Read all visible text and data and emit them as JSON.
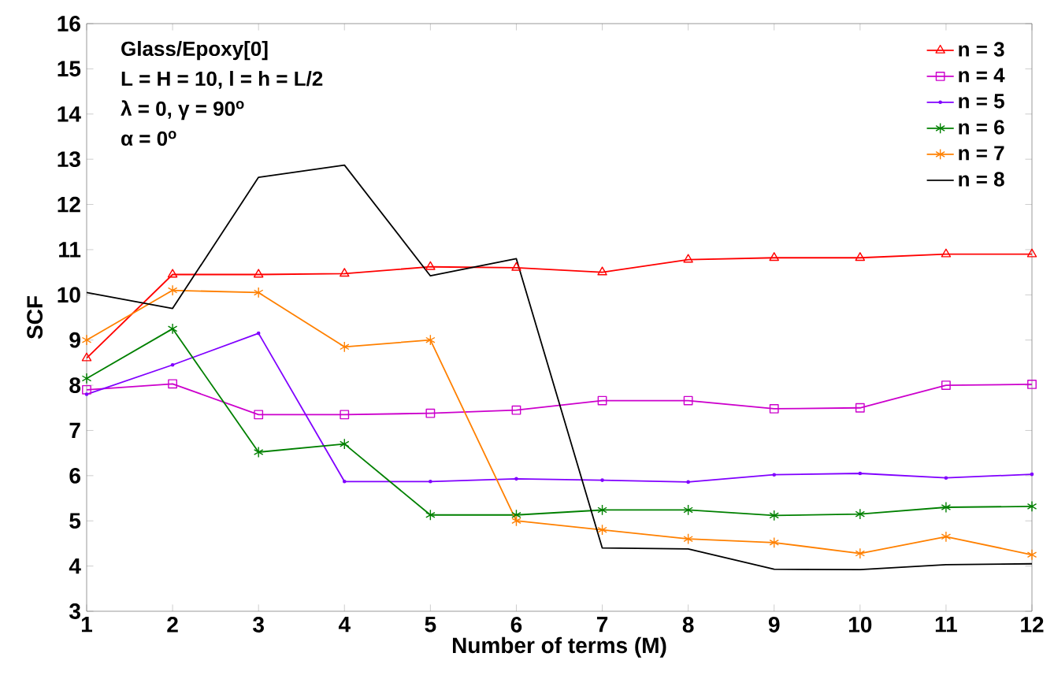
{
  "chart_data": {
    "type": "line",
    "xlabel": "Number of terms (M)",
    "ylabel": "SCF",
    "x": [
      1,
      2,
      3,
      4,
      5,
      6,
      7,
      8,
      9,
      10,
      11,
      12
    ],
    "xlim": [
      1,
      12
    ],
    "xticks": [
      1,
      2,
      3,
      4,
      5,
      6,
      7,
      8,
      9,
      10,
      11,
      12
    ],
    "ylim": [
      3,
      16
    ],
    "yticks": [
      3,
      4,
      5,
      6,
      7,
      8,
      9,
      10,
      11,
      12,
      13,
      14,
      15,
      16
    ],
    "grid": false,
    "legend": "top right",
    "annotations": [
      "Glass/Epoxy[0]",
      "L = H = 10, l = h = L/2",
      "λ = 0, γ = 90$^{o}$",
      "α = 0$^{o}$"
    ],
    "series": [
      {
        "name": "n = 3",
        "color": "#ff0000",
        "marker": "triangle",
        "values": [
          8.6,
          10.45,
          10.45,
          10.47,
          10.62,
          10.6,
          10.5,
          10.78,
          10.82,
          10.82,
          10.9,
          10.9
        ]
      },
      {
        "name": "n = 4",
        "color": "#cc00cc",
        "marker": "square",
        "values": [
          7.9,
          8.03,
          7.35,
          7.35,
          7.38,
          7.45,
          7.66,
          7.66,
          7.48,
          7.5,
          8.0,
          8.02
        ]
      },
      {
        "name": "n = 5",
        "color": "#8000ff",
        "marker": "circle",
        "values": [
          7.8,
          8.45,
          9.15,
          5.87,
          5.87,
          5.93,
          5.9,
          5.86,
          6.02,
          6.05,
          5.95,
          6.03
        ]
      },
      {
        "name": "n = 6",
        "color": "#008000",
        "marker": "cross",
        "values": [
          8.15,
          9.25,
          6.52,
          6.7,
          5.13,
          5.13,
          5.24,
          5.24,
          5.12,
          5.15,
          5.3,
          5.32
        ]
      },
      {
        "name": "n = 7",
        "color": "#ff8000",
        "marker": "cross",
        "values": [
          9.0,
          10.1,
          10.05,
          8.85,
          9.0,
          5.0,
          4.8,
          4.6,
          4.52,
          4.28,
          4.65,
          4.25
        ]
      },
      {
        "name": "n = 8",
        "color": "#000000",
        "marker": "none",
        "values": [
          10.05,
          9.7,
          12.6,
          12.87,
          10.42,
          10.8,
          4.4,
          4.38,
          3.93,
          3.92,
          4.03,
          4.05
        ]
      }
    ]
  }
}
